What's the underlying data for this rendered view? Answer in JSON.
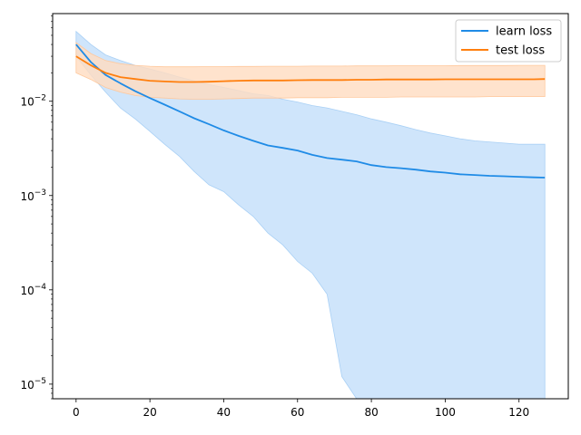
{
  "chart_data": {
    "type": "line",
    "title": "",
    "xlabel": "",
    "ylabel": "",
    "xlim": [
      -6.35,
      133.35
    ],
    "ylim": [
      7e-06,
      0.085
    ],
    "yscale": "log",
    "grid": false,
    "legend_position": "top-right",
    "xticks": [
      0,
      20,
      40,
      60,
      80,
      100,
      120
    ],
    "xtick_labels": [
      "0",
      "20",
      "40",
      "60",
      "80",
      "100",
      "120"
    ],
    "yticks": [
      1e-05,
      0.0001,
      0.001,
      0.01
    ],
    "ytick_labels": [
      {
        "base": "10",
        "exp": "−5"
      },
      {
        "base": "10",
        "exp": "−4"
      },
      {
        "base": "10",
        "exp": "−3"
      },
      {
        "base": "10",
        "exp": "−2"
      }
    ],
    "series": [
      {
        "name": "learn loss",
        "color": "#1f8be6",
        "band_color": "#cce4fb",
        "band_edge": "#a9d0f5",
        "x": [
          0,
          4,
          8,
          12,
          16,
          20,
          24,
          28,
          32,
          36,
          40,
          44,
          48,
          52,
          56,
          60,
          64,
          68,
          72,
          76,
          80,
          84,
          88,
          92,
          96,
          100,
          104,
          108,
          112,
          116,
          120,
          124,
          127
        ],
        "y": [
          0.04,
          0.026,
          0.019,
          0.0155,
          0.0128,
          0.0108,
          0.0092,
          0.0078,
          0.0066,
          0.0057,
          0.0049,
          0.0043,
          0.0038,
          0.0034,
          0.0032,
          0.003,
          0.0027,
          0.0025,
          0.0024,
          0.0023,
          0.0021,
          0.002,
          0.00195,
          0.00188,
          0.0018,
          0.00175,
          0.00168,
          0.00165,
          0.00162,
          0.0016,
          0.00158,
          0.00156,
          0.00155
        ],
        "upper": [
          0.055,
          0.04,
          0.031,
          0.027,
          0.024,
          0.022,
          0.02,
          0.018,
          0.0165,
          0.015,
          0.014,
          0.013,
          0.012,
          0.0115,
          0.0105,
          0.0098,
          0.009,
          0.0085,
          0.0078,
          0.0072,
          0.0065,
          0.006,
          0.0055,
          0.005,
          0.0046,
          0.0043,
          0.004,
          0.0038,
          0.0037,
          0.0036,
          0.0035,
          0.0035,
          0.0035
        ],
        "lower": [
          0.03,
          0.019,
          0.0125,
          0.0085,
          0.0065,
          0.0048,
          0.0035,
          0.0026,
          0.0018,
          0.0013,
          0.0011,
          0.0008,
          0.0006,
          0.0004,
          0.0003,
          0.0002,
          0.00015,
          9e-05,
          1.2e-05,
          7e-06,
          7e-06,
          7e-06,
          7e-06,
          7e-06,
          7e-06,
          7e-06,
          7e-06,
          7e-06,
          7e-06,
          7e-06,
          7e-06,
          7e-06,
          7e-06
        ]
      },
      {
        "name": "test loss",
        "color": "#ff7f0e",
        "band_color": "#ffdcc0",
        "band_edge": "#ffc89c",
        "x": [
          0,
          4,
          8,
          12,
          16,
          20,
          24,
          28,
          32,
          36,
          40,
          44,
          48,
          52,
          56,
          60,
          64,
          68,
          72,
          76,
          80,
          84,
          88,
          92,
          96,
          100,
          104,
          108,
          112,
          116,
          120,
          124,
          127
        ],
        "y": [
          0.03,
          0.024,
          0.02,
          0.018,
          0.0172,
          0.0165,
          0.0162,
          0.016,
          0.016,
          0.0161,
          0.0163,
          0.0165,
          0.0166,
          0.0166,
          0.0166,
          0.0167,
          0.0168,
          0.0168,
          0.0168,
          0.0169,
          0.0169,
          0.017,
          0.017,
          0.017,
          0.017,
          0.0171,
          0.0171,
          0.0171,
          0.0171,
          0.0171,
          0.0171,
          0.0171,
          0.0172
        ],
        "upper": [
          0.042,
          0.032,
          0.027,
          0.025,
          0.024,
          0.0235,
          0.0232,
          0.0232,
          0.0232,
          0.0233,
          0.0233,
          0.0234,
          0.0234,
          0.0235,
          0.0235,
          0.0235,
          0.0236,
          0.0236,
          0.0236,
          0.0237,
          0.0237,
          0.0237,
          0.0238,
          0.0238,
          0.0238,
          0.0238,
          0.0239,
          0.0239,
          0.0239,
          0.0239,
          0.024,
          0.024,
          0.024
        ],
        "lower": [
          0.02,
          0.017,
          0.014,
          0.0125,
          0.0115,
          0.011,
          0.0108,
          0.0106,
          0.0105,
          0.0105,
          0.0106,
          0.0107,
          0.0108,
          0.0108,
          0.0108,
          0.0109,
          0.0109,
          0.0109,
          0.011,
          0.011,
          0.011,
          0.011,
          0.0111,
          0.0111,
          0.0111,
          0.0111,
          0.0111,
          0.0111,
          0.0112,
          0.0112,
          0.0112,
          0.0112,
          0.0112
        ]
      }
    ]
  }
}
